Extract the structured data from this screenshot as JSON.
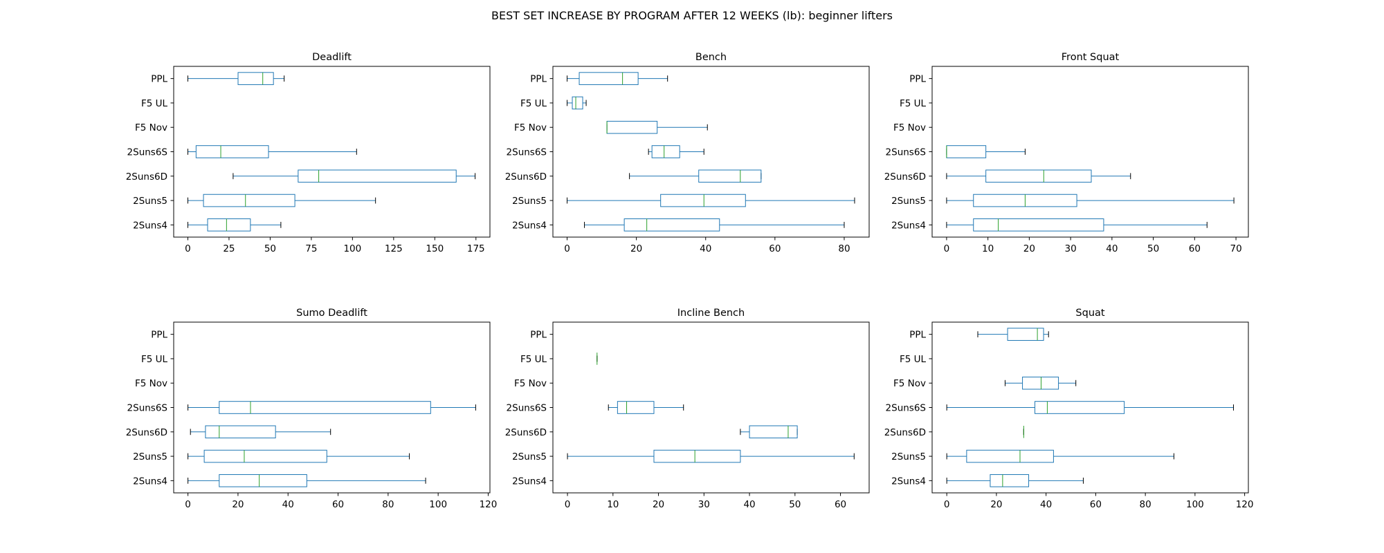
{
  "figure": {
    "title": "BEST SET INCREASE BY PROGRAM AFTER 12 WEEKS (lb): beginner lifters"
  },
  "colors": {
    "box": "#1f77b4",
    "median": "#2ca02c",
    "axis": "#000000",
    "background": "#ffffff"
  },
  "chart_data": [
    {
      "type": "boxplot",
      "orientation": "horizontal",
      "title": "Deadlift",
      "categories": [
        "PPL",
        "F5 UL",
        "F5 Nov",
        "2Suns6S",
        "2Suns6D",
        "2Suns5",
        "2Suns4"
      ],
      "xlim": [
        -8.6,
        183.5
      ],
      "xticks": [
        0,
        25,
        50,
        75,
        100,
        125,
        150,
        175
      ],
      "boxes": [
        {
          "whislo": 0,
          "q1": 30.5,
          "med": 45.5,
          "q3": 52,
          "whishi": 58.5
        },
        null,
        null,
        {
          "whislo": 0,
          "q1": 5,
          "med": 20,
          "q3": 49,
          "whishi": 102.5
        },
        {
          "whislo": 27.5,
          "q1": 67,
          "med": 79.5,
          "q3": 163,
          "whishi": 174.5
        },
        {
          "whislo": 0,
          "q1": 9.5,
          "med": 35,
          "q3": 65,
          "whishi": 114
        },
        {
          "whislo": 0,
          "q1": 12,
          "med": 23.5,
          "q3": 38,
          "whishi": 56.5
        }
      ]
    },
    {
      "type": "boxplot",
      "orientation": "horizontal",
      "title": "Bench",
      "categories": [
        "PPL",
        "F5 UL",
        "F5 Nov",
        "2Suns6S",
        "2Suns6D",
        "2Suns5",
        "2Suns4"
      ],
      "xlim": [
        -4.1,
        87.2
      ],
      "xticks": [
        0,
        20,
        40,
        60,
        80
      ],
      "boxes": [
        {
          "whislo": 0,
          "q1": 3.5,
          "med": 16,
          "q3": 20.5,
          "whishi": 29
        },
        {
          "whislo": 0,
          "q1": 1.5,
          "med": 2.5,
          "q3": 4.5,
          "whishi": 5.5
        },
        {
          "whislo": 11.5,
          "q1": 11.5,
          "med": 11.5,
          "q3": 26,
          "whishi": 40.5
        },
        {
          "whislo": 23.5,
          "q1": 24.5,
          "med": 28,
          "q3": 32.5,
          "whishi": 39.5
        },
        {
          "whislo": 18,
          "q1": 38,
          "med": 50,
          "q3": 56,
          "whishi": 56
        },
        {
          "whislo": 0,
          "q1": 27,
          "med": 39.5,
          "q3": 51.5,
          "whishi": 83
        },
        {
          "whislo": 5,
          "q1": 16.5,
          "med": 23,
          "q3": 44,
          "whishi": 80
        }
      ]
    },
    {
      "type": "boxplot",
      "orientation": "horizontal",
      "title": "Front Squat",
      "categories": [
        "PPL",
        "F5 UL",
        "F5 Nov",
        "2Suns6S",
        "2Suns6D",
        "2Suns5",
        "2Suns4"
      ],
      "xlim": [
        -3.5,
        73.0
      ],
      "xticks": [
        0,
        10,
        20,
        30,
        40,
        50,
        60,
        70
      ],
      "boxes": [
        null,
        null,
        null,
        {
          "whislo": 0,
          "q1": 0,
          "med": 0,
          "q3": 9.5,
          "whishi": 19
        },
        {
          "whislo": 0,
          "q1": 9.5,
          "med": 23.5,
          "q3": 35,
          "whishi": 44.5
        },
        {
          "whislo": 0,
          "q1": 6.5,
          "med": 19,
          "q3": 31.5,
          "whishi": 69.5
        },
        {
          "whislo": 0,
          "q1": 6.5,
          "med": 12.5,
          "q3": 38,
          "whishi": 63
        }
      ]
    },
    {
      "type": "boxplot",
      "orientation": "horizontal",
      "title": "Sumo Deadlift",
      "categories": [
        "PPL",
        "F5 UL",
        "F5 Nov",
        "2Suns6S",
        "2Suns6D",
        "2Suns5",
        "2Suns4"
      ],
      "xlim": [
        -5.7,
        120.7
      ],
      "xticks": [
        0,
        20,
        40,
        60,
        80,
        100,
        120
      ],
      "boxes": [
        null,
        null,
        null,
        {
          "whislo": 0,
          "q1": 12.5,
          "med": 25,
          "q3": 97,
          "whishi": 115
        },
        {
          "whislo": 1,
          "q1": 7,
          "med": 12.5,
          "q3": 35,
          "whishi": 57
        },
        {
          "whislo": 0,
          "q1": 6.5,
          "med": 22.5,
          "q3": 55.5,
          "whishi": 88.5
        },
        {
          "whislo": 0,
          "q1": 12.5,
          "med": 28.5,
          "q3": 47.5,
          "whishi": 95
        }
      ]
    },
    {
      "type": "boxplot",
      "orientation": "horizontal",
      "title": "Incline Bench",
      "categories": [
        "PPL",
        "F5 UL",
        "F5 Nov",
        "2Suns6S",
        "2Suns6D",
        "2Suns5",
        "2Suns4"
      ],
      "xlim": [
        -3.2,
        66.3
      ],
      "xticks": [
        0,
        10,
        20,
        30,
        40,
        50,
        60
      ],
      "boxes": [
        null,
        {
          "whislo": 6.5,
          "q1": 6.5,
          "med": 6.5,
          "q3": 6.5,
          "whishi": 6.5
        },
        null,
        {
          "whislo": 9,
          "q1": 11,
          "med": 13,
          "q3": 19,
          "whishi": 25.5
        },
        {
          "whislo": 38,
          "q1": 40,
          "med": 48.5,
          "q3": 50.5,
          "whishi": 50.5
        },
        {
          "whislo": 0,
          "q1": 19,
          "med": 28,
          "q3": 38,
          "whishi": 63
        },
        null
      ]
    },
    {
      "type": "boxplot",
      "orientation": "horizontal",
      "title": "Squat",
      "categories": [
        "PPL",
        "F5 UL",
        "F5 Nov",
        "2Suns6S",
        "2Suns6D",
        "2Suns5",
        "2Suns4"
      ],
      "xlim": [
        -5.9,
        121.5
      ],
      "xticks": [
        0,
        20,
        40,
        60,
        80,
        100,
        120
      ],
      "boxes": [
        {
          "whislo": 12.5,
          "q1": 24.5,
          "med": 36.5,
          "q3": 39,
          "whishi": 41
        },
        null,
        {
          "whislo": 23.5,
          "q1": 30.5,
          "med": 38,
          "q3": 45,
          "whishi": 52
        },
        {
          "whislo": 0,
          "q1": 35.5,
          "med": 40.5,
          "q3": 71.5,
          "whishi": 115.5
        },
        {
          "whislo": 31,
          "q1": 31,
          "med": 31,
          "q3": 31,
          "whishi": 31
        },
        {
          "whislo": 0,
          "q1": 8,
          "med": 29.5,
          "q3": 43,
          "whishi": 91.5
        },
        {
          "whislo": 0,
          "q1": 17.5,
          "med": 22.5,
          "q3": 33,
          "whishi": 55
        }
      ]
    }
  ]
}
